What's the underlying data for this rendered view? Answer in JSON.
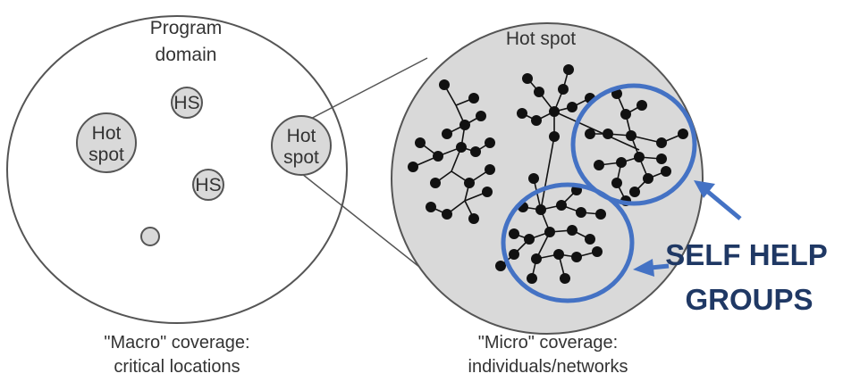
{
  "diagram": {
    "macro": {
      "title_line1": "Program",
      "title_line2": "domain",
      "hotspot_large_line1": "Hot",
      "hotspot_large_line2": "spot",
      "hs_top": "HS",
      "hs_bottom": "HS",
      "hotspot_right_line1": "Hot",
      "hotspot_right_line2": "spot",
      "caption_line1": "\"Macro\" coverage:",
      "caption_line2": "critical locations"
    },
    "micro": {
      "title": "Hot spot",
      "caption_line1": "\"Micro\" coverage:",
      "caption_line2": "individuals/networks"
    },
    "annotation": {
      "line1": "SELF HELP",
      "line2": "GROUPS",
      "color": "#4472c4",
      "text_color": "#1f3864"
    },
    "colors": {
      "circle_fill": "#d9d9d9",
      "outline": "#555555",
      "node": "#111111"
    }
  }
}
